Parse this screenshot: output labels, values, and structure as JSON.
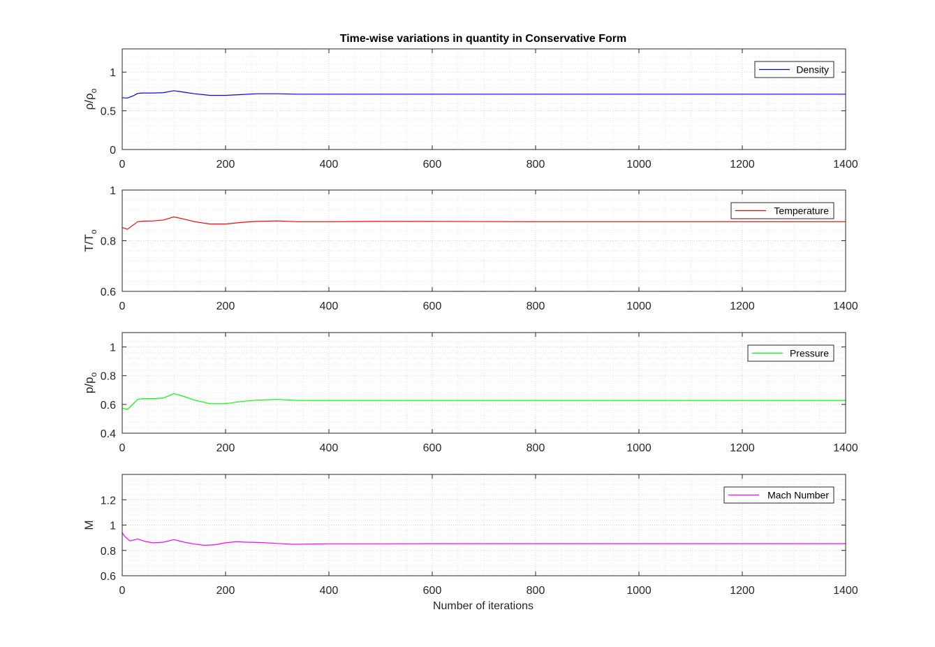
{
  "figure": {
    "title": "Time-wise variations in quantity in Conservative Form",
    "xlabel": "Number of iterations"
  },
  "chart_data": [
    {
      "type": "line",
      "ylabel": "ρ/ρo",
      "ylabel_main": "ρ/ρ",
      "ylabel_sub": "o",
      "xlim": [
        0,
        1400
      ],
      "ylim": [
        0,
        1.3
      ],
      "xticks": [
        0,
        200,
        400,
        600,
        800,
        1000,
        1200,
        1400
      ],
      "yticks": [
        0,
        0.5,
        1
      ],
      "ytick_labels": [
        "0",
        "0.5",
        "1"
      ],
      "grid": true,
      "minor_grid": true,
      "legend": "top-right",
      "series": [
        {
          "name": "Density",
          "color": "#0000ff",
          "x": [
            0,
            10,
            20,
            30,
            40,
            60,
            80,
            100,
            120,
            140,
            170,
            200,
            230,
            260,
            300,
            340,
            400,
            500,
            600,
            800,
            1000,
            1200,
            1400
          ],
          "y": [
            0.67,
            0.665,
            0.69,
            0.725,
            0.73,
            0.73,
            0.735,
            0.76,
            0.74,
            0.72,
            0.7,
            0.7,
            0.71,
            0.72,
            0.72,
            0.715,
            0.715,
            0.715,
            0.715,
            0.715,
            0.715,
            0.715,
            0.715
          ]
        }
      ]
    },
    {
      "type": "line",
      "ylabel": "T/To",
      "ylabel_main": "T/T",
      "ylabel_sub": "o",
      "xlim": [
        0,
        1400
      ],
      "ylim": [
        0.6,
        1
      ],
      "xticks": [
        0,
        200,
        400,
        600,
        800,
        1000,
        1200,
        1400
      ],
      "yticks": [
        0.6,
        0.8,
        1
      ],
      "ytick_labels": [
        "0.6",
        "0.8",
        "1"
      ],
      "grid": true,
      "minor_grid": true,
      "legend": "top-right",
      "series": [
        {
          "name": "Temperature",
          "color": "#ff0000",
          "x": [
            0,
            10,
            20,
            30,
            40,
            60,
            80,
            100,
            120,
            140,
            170,
            200,
            230,
            260,
            300,
            340,
            400,
            500,
            600,
            800,
            1000,
            1200,
            1400
          ],
          "y": [
            0.852,
            0.845,
            0.86,
            0.875,
            0.877,
            0.878,
            0.882,
            0.894,
            0.885,
            0.875,
            0.866,
            0.866,
            0.872,
            0.876,
            0.878,
            0.875,
            0.875,
            0.876,
            0.876,
            0.875,
            0.875,
            0.875,
            0.875
          ]
        }
      ]
    },
    {
      "type": "line",
      "ylabel": "p/po",
      "ylabel_main": "p/p",
      "ylabel_sub": "o",
      "xlim": [
        0,
        1400
      ],
      "ylim": [
        0.4,
        1.1
      ],
      "xticks": [
        0,
        200,
        400,
        600,
        800,
        1000,
        1200,
        1400
      ],
      "yticks": [
        0.4,
        0.6,
        0.8,
        1
      ],
      "ytick_labels": [
        "0.4",
        "0.6",
        "0.8",
        "1"
      ],
      "grid": true,
      "minor_grid": true,
      "legend": "top-right",
      "series": [
        {
          "name": "Pressure",
          "color": "#00ff00",
          "x": [
            0,
            10,
            20,
            30,
            40,
            60,
            80,
            100,
            120,
            140,
            170,
            200,
            230,
            260,
            300,
            340,
            400,
            500,
            600,
            800,
            1000,
            1200,
            1400
          ],
          "y": [
            0.575,
            0.565,
            0.6,
            0.635,
            0.64,
            0.64,
            0.645,
            0.675,
            0.655,
            0.63,
            0.605,
            0.605,
            0.62,
            0.63,
            0.635,
            0.628,
            0.628,
            0.628,
            0.628,
            0.628,
            0.628,
            0.628,
            0.628
          ]
        }
      ]
    },
    {
      "type": "line",
      "ylabel": "M",
      "ylabel_main": "M",
      "ylabel_sub": "",
      "xlim": [
        0,
        1400
      ],
      "ylim": [
        0.6,
        1.4
      ],
      "xticks": [
        0,
        200,
        400,
        600,
        800,
        1000,
        1200,
        1400
      ],
      "yticks": [
        0.6,
        0.8,
        1,
        1.2
      ],
      "ytick_labels": [
        "0.6",
        "0.8",
        "1",
        "1.2"
      ],
      "grid": true,
      "minor_grid": true,
      "legend": "top-right",
      "series": [
        {
          "name": "Mach Number",
          "color": "#ff00ff",
          "x": [
            0,
            5,
            15,
            30,
            45,
            60,
            80,
            100,
            120,
            140,
            160,
            180,
            200,
            220,
            240,
            270,
            300,
            330,
            400,
            500,
            600,
            800,
            1000,
            1200,
            1400
          ],
          "y": [
            0.94,
            0.91,
            0.875,
            0.89,
            0.87,
            0.86,
            0.865,
            0.885,
            0.865,
            0.85,
            0.84,
            0.845,
            0.86,
            0.868,
            0.865,
            0.862,
            0.855,
            0.848,
            0.852,
            0.852,
            0.853,
            0.853,
            0.853,
            0.853,
            0.853
          ]
        }
      ]
    }
  ]
}
